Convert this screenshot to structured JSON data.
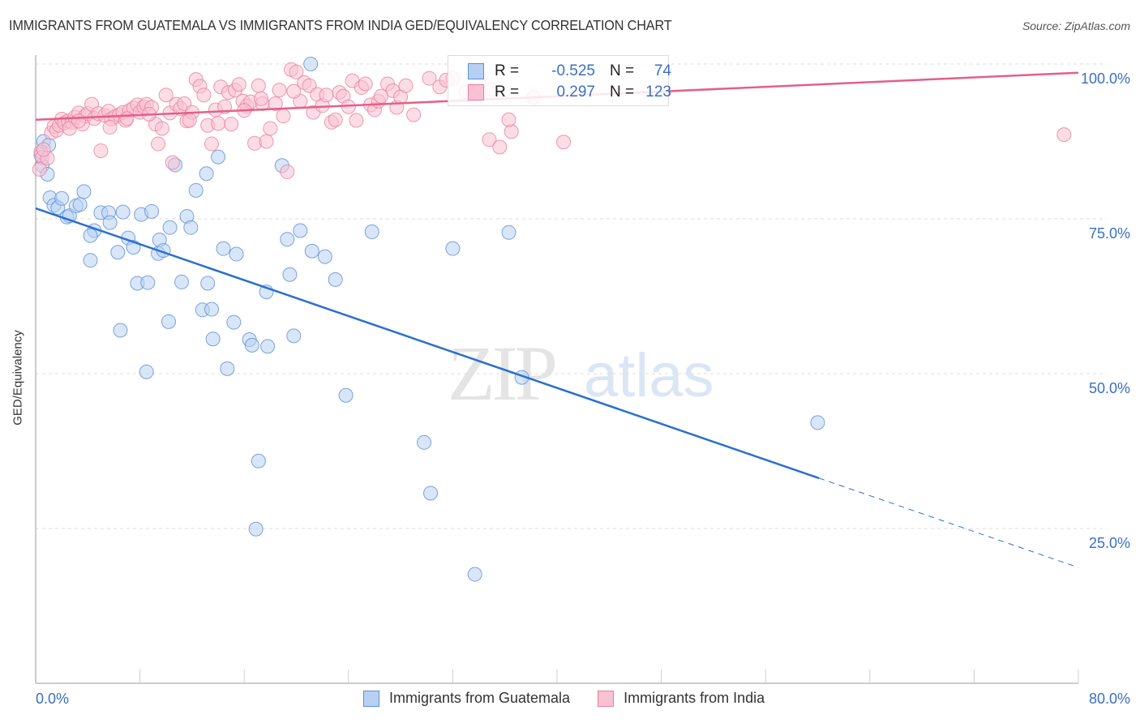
{
  "title": "IMMIGRANTS FROM GUATEMALA VS IMMIGRANTS FROM INDIA GED/EQUIVALENCY CORRELATION CHART",
  "source": "Source: ZipAtlas.com",
  "watermark": {
    "zip": "ZIP",
    "atlas": "atlas"
  },
  "legend_stats": [
    {
      "series": "Immigrants from Guatemala",
      "r_label": "R =",
      "r_value": "-0.525",
      "n_label": "N =",
      "n_value": "74"
    },
    {
      "series": "Immigrants from India",
      "r_label": "R =",
      "r_value": "0.297",
      "n_label": "N =",
      "n_value": "123"
    }
  ],
  "colors": {
    "guatemala_fill": "#b8d1f3",
    "guatemala_stroke": "#5b8fd9",
    "guatemala_line": "#2a6fd1",
    "india_fill": "#f9c1d2",
    "india_stroke": "#e87fa0",
    "india_line": "#e45f8a",
    "tick_label": "#3a6fc4"
  },
  "chart_data": {
    "type": "scatter",
    "title": "IMMIGRANTS FROM GUATEMALA VS IMMIGRANTS FROM INDIA GED/EQUIVALENCY CORRELATION CHART",
    "xlabel": "",
    "ylabel": "GED/Equivalency",
    "xlim": [
      0,
      80
    ],
    "ylim": [
      0,
      100
    ],
    "x_tick_labels": [
      "0.0%",
      "80.0%"
    ],
    "y_ticks": [
      25,
      50,
      75,
      100
    ],
    "y_tick_labels": [
      "25.0%",
      "50.0%",
      "75.0%",
      "100.0%"
    ],
    "grid": true,
    "legend_position": "bottom",
    "series": [
      {
        "name": "Immigrants from Guatemala",
        "trend": {
          "x0": 0,
          "y0": 76.7,
          "x1": 80,
          "y1": 18.7,
          "solid_until_x": 60.1
        },
        "points": [
          [
            0.6,
            87.5
          ],
          [
            0.5,
            83.6
          ],
          [
            0.9,
            82.2
          ],
          [
            1.1,
            78.4
          ],
          [
            1.4,
            77.2
          ],
          [
            1.7,
            76.8
          ],
          [
            2.0,
            78.3
          ],
          [
            2.4,
            75.3
          ],
          [
            2.6,
            75.5
          ],
          [
            3.1,
            77.1
          ],
          [
            3.4,
            77.3
          ],
          [
            3.7,
            79.4
          ],
          [
            4.5,
            73.1
          ],
          [
            4.2,
            72.3
          ],
          [
            5.0,
            76.0
          ],
          [
            5.6,
            76.0
          ],
          [
            5.7,
            74.4
          ],
          [
            4.2,
            68.3
          ],
          [
            6.3,
            69.6
          ],
          [
            6.7,
            76.1
          ],
          [
            7.1,
            71.9
          ],
          [
            7.5,
            70.4
          ],
          [
            8.1,
            75.7
          ],
          [
            8.9,
            76.2
          ],
          [
            9.5,
            71.6
          ],
          [
            9.4,
            69.4
          ],
          [
            9.8,
            69.9
          ],
          [
            10.3,
            73.6
          ],
          [
            10.7,
            83.7
          ],
          [
            11.6,
            75.4
          ],
          [
            11.9,
            73.6
          ],
          [
            12.3,
            79.6
          ],
          [
            13.1,
            82.3
          ],
          [
            14.0,
            85.0
          ],
          [
            7.8,
            64.6
          ],
          [
            8.6,
            64.7
          ],
          [
            11.2,
            64.8
          ],
          [
            13.2,
            64.6
          ],
          [
            14.4,
            70.2
          ],
          [
            15.4,
            69.3
          ],
          [
            17.7,
            63.2
          ],
          [
            19.3,
            71.7
          ],
          [
            20.3,
            73.1
          ],
          [
            19.5,
            66.0
          ],
          [
            21.2,
            69.8
          ],
          [
            22.2,
            68.9
          ],
          [
            23.0,
            65.2
          ],
          [
            18.9,
            83.6
          ],
          [
            21.1,
            100.0
          ],
          [
            25.8,
            72.9
          ],
          [
            32.0,
            70.2
          ],
          [
            36.3,
            72.8
          ],
          [
            12.8,
            60.3
          ],
          [
            13.5,
            60.4
          ],
          [
            10.2,
            58.4
          ],
          [
            6.5,
            57.0
          ],
          [
            15.2,
            58.3
          ],
          [
            13.6,
            55.6
          ],
          [
            16.4,
            55.5
          ],
          [
            16.6,
            54.6
          ],
          [
            17.8,
            54.4
          ],
          [
            19.8,
            56.1
          ],
          [
            14.7,
            50.8
          ],
          [
            8.5,
            50.3
          ],
          [
            23.8,
            46.5
          ],
          [
            37.3,
            49.4
          ],
          [
            29.8,
            38.9
          ],
          [
            17.1,
            35.9
          ],
          [
            30.3,
            30.7
          ],
          [
            16.9,
            24.9
          ],
          [
            33.7,
            17.6
          ],
          [
            60.0,
            42.1
          ],
          [
            0.4,
            85.3
          ],
          [
            1.0,
            86.9
          ]
        ]
      },
      {
        "name": "Immigrants from India",
        "trend": {
          "x0": 0,
          "y0": 91.0,
          "x1": 80,
          "y1": 98.6,
          "solid_until_x": 80
        },
        "points": [
          [
            0.4,
            85.8
          ],
          [
            0.5,
            84.9
          ],
          [
            0.9,
            84.8
          ],
          [
            1.2,
            88.9
          ],
          [
            1.4,
            89.9
          ],
          [
            1.6,
            89.3
          ],
          [
            1.8,
            90.1
          ],
          [
            2.0,
            91.1
          ],
          [
            2.2,
            90.5
          ],
          [
            2.5,
            90.8
          ],
          [
            2.8,
            90.6
          ],
          [
            3.0,
            91.4
          ],
          [
            3.3,
            92.1
          ],
          [
            3.6,
            90.3
          ],
          [
            3.8,
            91.6
          ],
          [
            4.0,
            92.0
          ],
          [
            4.3,
            93.5
          ],
          [
            4.5,
            91.2
          ],
          [
            4.8,
            92.0
          ],
          [
            5.0,
            86.0
          ],
          [
            5.3,
            91.7
          ],
          [
            5.6,
            92.4
          ],
          [
            5.8,
            91.1
          ],
          [
            6.1,
            91.5
          ],
          [
            6.4,
            91.8
          ],
          [
            6.7,
            92.2
          ],
          [
            6.9,
            90.9
          ],
          [
            7.2,
            92.5
          ],
          [
            7.5,
            92.9
          ],
          [
            7.8,
            93.4
          ],
          [
            8.0,
            92.2
          ],
          [
            8.3,
            93.1
          ],
          [
            8.5,
            93.5
          ],
          [
            8.9,
            93.0
          ],
          [
            9.2,
            90.3
          ],
          [
            9.4,
            87.1
          ],
          [
            9.7,
            89.6
          ],
          [
            10.0,
            95.0
          ],
          [
            10.3,
            92.1
          ],
          [
            10.5,
            84.1
          ],
          [
            10.8,
            93.5
          ],
          [
            11.1,
            92.8
          ],
          [
            11.4,
            93.6
          ],
          [
            11.6,
            90.8
          ],
          [
            12.0,
            92.2
          ],
          [
            12.3,
            97.5
          ],
          [
            12.6,
            96.4
          ],
          [
            12.9,
            95.0
          ],
          [
            13.2,
            90.1
          ],
          [
            13.5,
            87.1
          ],
          [
            13.8,
            92.6
          ],
          [
            14.2,
            96.3
          ],
          [
            14.5,
            93.1
          ],
          [
            14.8,
            95.4
          ],
          [
            15.0,
            90.3
          ],
          [
            15.3,
            95.8
          ],
          [
            15.6,
            96.7
          ],
          [
            15.9,
            94.0
          ],
          [
            16.2,
            93.2
          ],
          [
            16.5,
            93.9
          ],
          [
            16.8,
            87.2
          ],
          [
            17.1,
            96.5
          ],
          [
            17.4,
            93.6
          ],
          [
            17.7,
            87.5
          ],
          [
            18.0,
            89.6
          ],
          [
            18.4,
            93.6
          ],
          [
            18.7,
            95.8
          ],
          [
            19.0,
            91.6
          ],
          [
            19.3,
            82.6
          ],
          [
            19.6,
            99.1
          ],
          [
            20.0,
            98.7
          ],
          [
            20.3,
            94.0
          ],
          [
            20.6,
            97.0
          ],
          [
            21.0,
            96.5
          ],
          [
            21.3,
            92.2
          ],
          [
            21.6,
            95.1
          ],
          [
            22.0,
            93.3
          ],
          [
            22.3,
            95.0
          ],
          [
            22.7,
            90.6
          ],
          [
            23.0,
            91.0
          ],
          [
            23.3,
            95.4
          ],
          [
            23.6,
            94.8
          ],
          [
            24.0,
            93.1
          ],
          [
            24.3,
            97.3
          ],
          [
            24.6,
            90.9
          ],
          [
            25.0,
            96.2
          ],
          [
            25.3,
            96.8
          ],
          [
            25.7,
            93.4
          ],
          [
            26.0,
            92.6
          ],
          [
            26.3,
            94.0
          ],
          [
            27.0,
            96.8
          ],
          [
            27.4,
            95.7
          ],
          [
            27.7,
            93.0
          ],
          [
            28.0,
            94.7
          ],
          [
            28.4,
            96.5
          ],
          [
            29.0,
            91.8
          ],
          [
            30.2,
            97.7
          ],
          [
            31.0,
            96.3
          ],
          [
            32.0,
            97.7
          ],
          [
            33.0,
            95.5
          ],
          [
            34.0,
            96.8
          ],
          [
            35.0,
            95.9
          ],
          [
            34.8,
            87.8
          ],
          [
            35.6,
            86.6
          ],
          [
            36.5,
            89.1
          ],
          [
            36.3,
            91.0
          ],
          [
            38.2,
            94.6
          ],
          [
            40.5,
            87.4
          ],
          [
            78.9,
            88.6
          ],
          [
            0.3,
            83.0
          ],
          [
            0.6,
            86.2
          ],
          [
            2.6,
            89.6
          ],
          [
            3.3,
            90.8
          ],
          [
            5.7,
            89.8
          ],
          [
            7.0,
            91.2
          ],
          [
            8.7,
            91.9
          ],
          [
            11.8,
            90.9
          ],
          [
            14.0,
            90.4
          ],
          [
            16.0,
            92.5
          ],
          [
            17.3,
            94.4
          ],
          [
            19.8,
            95.6
          ],
          [
            26.5,
            94.8
          ],
          [
            31.5,
            97.4
          ]
        ]
      }
    ]
  }
}
